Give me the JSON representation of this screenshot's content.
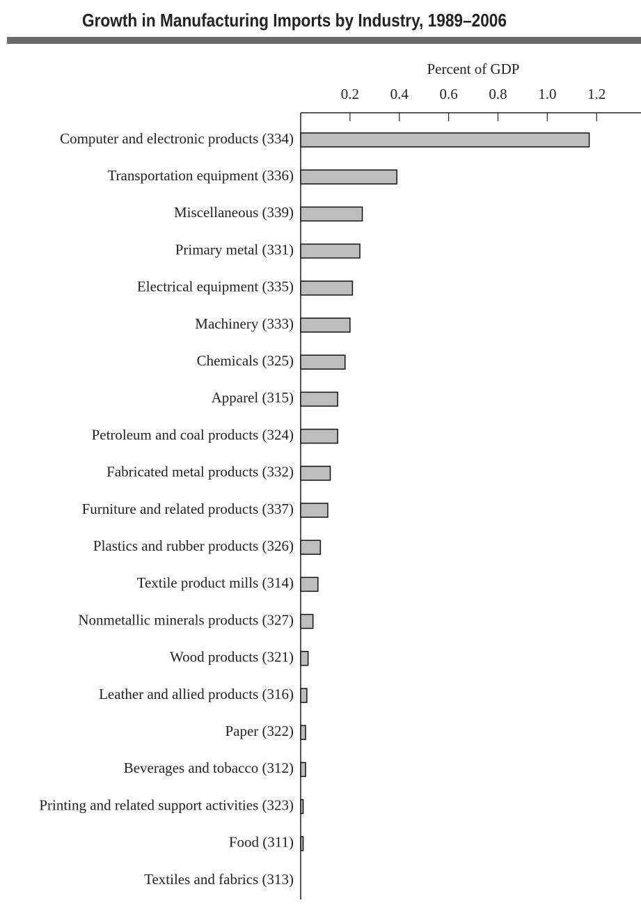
{
  "chart_data": {
    "type": "bar",
    "orientation": "horizontal",
    "title": "Growth in Manufacturing Imports by Industry, 1989–2006",
    "x_label": "Percent of GDP",
    "categories": [
      "Computer and electronic products (334)",
      "Transportation equipment (336)",
      "Miscellaneous (339)",
      "Primary metal (331)",
      "Electrical equipment (335)",
      "Machinery (333)",
      "Chemicals (325)",
      "Apparel (315)",
      "Petroleum and coal products (324)",
      "Fabricated metal products (332)",
      "Furniture and related products (337)",
      "Plastics and rubber products (326)",
      "Textile product mills (314)",
      "Nonmetallic minerals products (327)",
      "Wood products (321)",
      "Leather and allied products (316)",
      "Paper (322)",
      "Beverages and tobacco (312)",
      "Printing and related support activities (323)",
      "Food (311)",
      "Textiles and fabrics (313)"
    ],
    "values": [
      1.17,
      0.39,
      0.25,
      0.24,
      0.21,
      0.2,
      0.18,
      0.15,
      0.15,
      0.12,
      0.11,
      0.08,
      0.07,
      0.05,
      0.03,
      0.025,
      0.02,
      0.02,
      0.01,
      0.01,
      0
    ],
    "color": "#bdbdbd",
    "xlim": [
      0,
      1.38
    ],
    "xticks": [
      0.2,
      0.4,
      0.6,
      0.8,
      {
        "value": 1,
        "label": "1.0"
      },
      1.2
    ]
  }
}
